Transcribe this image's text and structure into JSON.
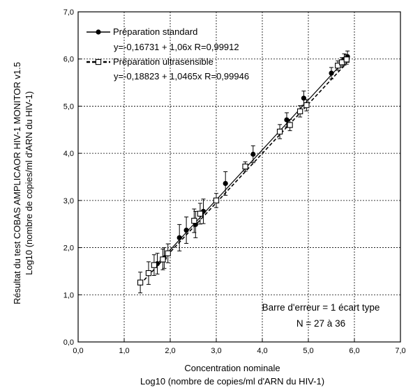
{
  "chart_data": {
    "type": "scatter",
    "xlabel": [
      "Concentration nominale",
      "Log10 (nombre de copies/ml d'ARN du HIV-1)"
    ],
    "ylabel": [
      "Résultat du test COBAS AMPLICAOR HIV-1 MONITOR v1.5",
      "Log10 (nombre de copies/ml d'ARN du HIV-1)"
    ],
    "xlim": [
      0,
      7
    ],
    "ylim": [
      0,
      7
    ],
    "x_ticks": [
      "0,0",
      "1,0",
      "2,0",
      "3,0",
      "4,0",
      "5,0",
      "6,0",
      "7,0"
    ],
    "y_ticks": [
      "0,0",
      "1,0",
      "2,0",
      "3,0",
      "4,0",
      "5,0",
      "6,0",
      "7,0"
    ],
    "grid": true,
    "legend_position": "top-left",
    "annotation": [
      "Barre d'erreur = 1 écart type",
      "N = 27 à 36"
    ],
    "series": [
      {
        "name": "Préparation standard",
        "equation": "y=-0,16731 + 1,06x  R=0,99912",
        "marker": "filled-circle",
        "line_style": "solid",
        "intercept": -0.16731,
        "slope": 1.06,
        "points": [
          {
            "x": 1.72,
            "y": 1.66,
            "err": 0.22
          },
          {
            "x": 1.87,
            "y": 1.78,
            "err": 0.22
          },
          {
            "x": 2.2,
            "y": 2.21,
            "err": 0.28
          },
          {
            "x": 2.35,
            "y": 2.37,
            "err": 0.28
          },
          {
            "x": 2.55,
            "y": 2.49,
            "err": 0.28
          },
          {
            "x": 2.72,
            "y": 2.77,
            "err": 0.26
          },
          {
            "x": 3.2,
            "y": 3.36,
            "err": 0.25
          },
          {
            "x": 3.8,
            "y": 3.98,
            "err": 0.18
          },
          {
            "x": 4.53,
            "y": 4.71,
            "err": 0.15
          },
          {
            "x": 4.9,
            "y": 5.17,
            "err": 0.15
          },
          {
            "x": 5.5,
            "y": 5.7,
            "err": 0.12
          },
          {
            "x": 5.78,
            "y": 5.99,
            "err": 0.12
          },
          {
            "x": 5.85,
            "y": 6.05,
            "err": 0.12
          }
        ]
      },
      {
        "name": "Préparation ultrasensible",
        "equation": "y=-0,18823 + 1,0465x  R=0,99946",
        "marker": "open-square",
        "line_style": "dashed",
        "intercept": -0.18823,
        "slope": 1.0465,
        "points": [
          {
            "x": 1.35,
            "y": 1.26,
            "err": 0.22
          },
          {
            "x": 1.53,
            "y": 1.46,
            "err": 0.24
          },
          {
            "x": 1.65,
            "y": 1.63,
            "err": 0.22
          },
          {
            "x": 1.84,
            "y": 1.75,
            "err": 0.22
          },
          {
            "x": 1.95,
            "y": 1.88,
            "err": 0.2
          },
          {
            "x": 2.52,
            "y": 2.57,
            "err": 0.25
          },
          {
            "x": 2.65,
            "y": 2.72,
            "err": 0.22
          },
          {
            "x": 3.0,
            "y": 3.0,
            "err": 0.15
          },
          {
            "x": 3.63,
            "y": 3.72,
            "err": 0.1
          },
          {
            "x": 4.38,
            "y": 4.46,
            "err": 0.15
          },
          {
            "x": 4.6,
            "y": 4.6,
            "err": 0.12
          },
          {
            "x": 4.82,
            "y": 4.89,
            "err": 0.12
          },
          {
            "x": 4.96,
            "y": 5.02,
            "err": 0.12
          },
          {
            "x": 5.64,
            "y": 5.86,
            "err": 0.1
          },
          {
            "x": 5.73,
            "y": 5.93,
            "err": 0.1
          },
          {
            "x": 5.83,
            "y": 5.99,
            "err": 0.1
          }
        ]
      }
    ]
  }
}
